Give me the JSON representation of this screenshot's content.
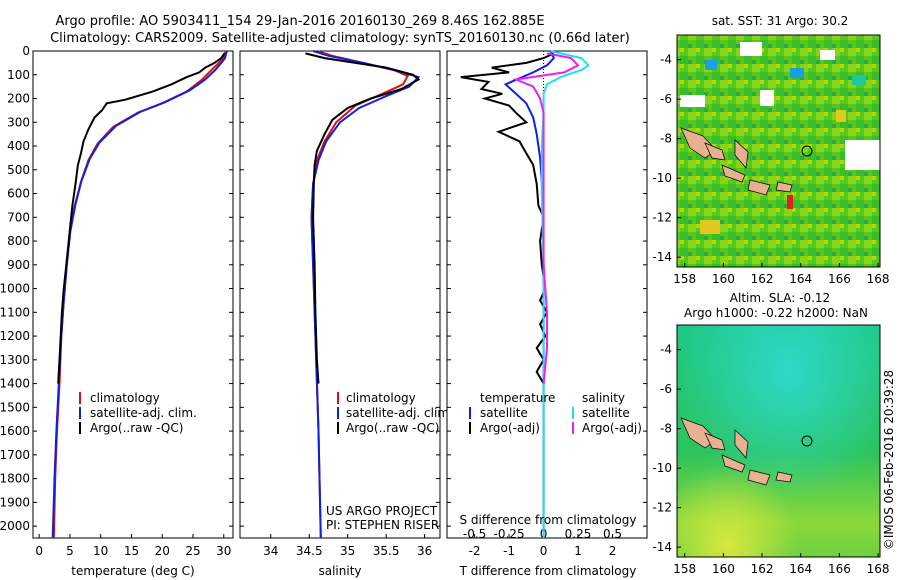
{
  "title": {
    "line1": "Argo profile: AO 5903411_154 29-Jan-2016 20160130_269 8.46S 162.885E",
    "line2": "Climatology: CARS2009. Satellite-adjusted climatology: synTS_20160130.nc (0.66d later)"
  },
  "depth_ticks": [
    0,
    100,
    200,
    300,
    400,
    500,
    600,
    700,
    800,
    900,
    1000,
    1100,
    1200,
    1300,
    1400,
    1500,
    1600,
    1700,
    1800,
    1900,
    2000
  ],
  "colors": {
    "climatology": "#e01010",
    "satellite": "#1020e0",
    "argo": "#000000",
    "sal_satellite": "#20e0f0",
    "sal_argo": "#f020f0"
  },
  "panels": {
    "temperature": {
      "xlabel": "temperature (deg C)",
      "xticks": [
        "0",
        "5",
        "10",
        "15",
        "20",
        "25",
        "30"
      ],
      "legend": [
        "climatology",
        "satellite-adj. clim.",
        "Argo(..raw -QC)"
      ]
    },
    "salinity": {
      "xlabel": "salinity",
      "xticks": [
        "34",
        "34.5",
        "35",
        "35.5",
        "36"
      ],
      "legend": [
        "climatology",
        "satellite-adj. clim.",
        "Argo(..raw -QC)"
      ],
      "credit1": "US ARGO PROJECT",
      "credit2": "PI: STEPHEN RISER"
    },
    "difference": {
      "xlabel_bottom": "T difference from climatology",
      "xlabel_top": "S difference from climatology",
      "xticks_T": [
        "-2",
        "-1",
        "0",
        "1",
        "2"
      ],
      "xticks_S": [
        "-0.5",
        "-0.25",
        "0",
        "0.25",
        "0.5"
      ],
      "legend_t_head": "temperature",
      "legend_s_head": "salinity",
      "legend_t": [
        "satellite",
        "Argo(-adj)"
      ],
      "legend_s": [
        "satellite",
        "Argo(-adj)"
      ]
    }
  },
  "maps": {
    "sst": {
      "title": "sat. SST: 31 Argo: 30.2",
      "yticks": [
        "-4",
        "-6",
        "-8",
        "-10",
        "-12",
        "-14"
      ],
      "xticks": [
        "158",
        "160",
        "162",
        "164",
        "166",
        "168"
      ]
    },
    "sla": {
      "title1": "Altim. SLA: -0.12",
      "title2": "Argo h1000: -0.22 h2000: NaN",
      "yticks": [
        "-4",
        "-6",
        "-8",
        "-10",
        "-12",
        "-14"
      ],
      "xticks": [
        "158",
        "160",
        "162",
        "164",
        "166",
        "168"
      ]
    }
  },
  "side_label": "©IMOS 06-Feb-2016 20:39:28",
  "chart_data": [
    {
      "type": "line",
      "xlabel": "temperature (deg C)",
      "ylabel": "",
      "xlim": [
        -1,
        31.5
      ],
      "ylim": [
        2050,
        0
      ],
      "series": [
        {
          "name": "climatology",
          "points": [
            [
              30.3,
              0
            ],
            [
              30.0,
              30
            ],
            [
              29.2,
              50
            ],
            [
              28.0,
              80
            ],
            [
              26.5,
              120
            ],
            [
              24.0,
              170
            ],
            [
              20.0,
              220
            ],
            [
              16.0,
              260
            ],
            [
              12.0,
              320
            ],
            [
              9.5,
              390
            ],
            [
              8.0,
              460
            ],
            [
              6.8,
              550
            ],
            [
              5.8,
              650
            ],
            [
              5.0,
              760
            ],
            [
              4.5,
              900
            ],
            [
              4.0,
              1050
            ],
            [
              3.6,
              1200
            ],
            [
              3.3,
              1400
            ],
            [
              2.9,
              1600
            ],
            [
              2.6,
              1800
            ],
            [
              2.4,
              2050
            ]
          ]
        },
        {
          "name": "satellite-adj. clim.",
          "points": [
            [
              30.5,
              0
            ],
            [
              30.2,
              30
            ],
            [
              29.6,
              50
            ],
            [
              28.6,
              80
            ],
            [
              27.0,
              120
            ],
            [
              24.5,
              165
            ],
            [
              20.5,
              215
            ],
            [
              16.5,
              255
            ],
            [
              12.5,
              315
            ],
            [
              9.8,
              385
            ],
            [
              8.2,
              455
            ],
            [
              6.9,
              545
            ],
            [
              5.9,
              645
            ],
            [
              5.1,
              755
            ],
            [
              4.5,
              900
            ],
            [
              4.0,
              1050
            ],
            [
              3.6,
              1200
            ],
            [
              3.2,
              1400
            ],
            [
              2.8,
              1600
            ],
            [
              2.5,
              1800
            ],
            [
              2.2,
              2050
            ]
          ]
        },
        {
          "name": "Argo(..raw -QC)",
          "points": [
            [
              30.1,
              10
            ],
            [
              29.6,
              30
            ],
            [
              28.5,
              50
            ],
            [
              27.0,
              70
            ],
            [
              26.0,
              90
            ],
            [
              24.0,
              110
            ],
            [
              21.5,
              140
            ],
            [
              18.5,
              170
            ],
            [
              14.0,
              205
            ],
            [
              11.0,
              220
            ],
            [
              10.2,
              250
            ],
            [
              9.0,
              280
            ],
            [
              8.0,
              330
            ],
            [
              7.2,
              380
            ],
            [
              6.8,
              430
            ],
            [
              6.3,
              480
            ],
            [
              5.9,
              560
            ],
            [
              5.4,
              650
            ],
            [
              5.0,
              750
            ],
            [
              4.5,
              880
            ],
            [
              4.0,
              1000
            ],
            [
              3.7,
              1100
            ],
            [
              3.5,
              1200
            ],
            [
              3.3,
              1300
            ],
            [
              3.1,
              1400
            ]
          ]
        }
      ]
    },
    {
      "type": "line",
      "xlabel": "salinity",
      "ylabel": "",
      "xlim": [
        33.6,
        36.2
      ],
      "ylim": [
        2050,
        0
      ],
      "series": [
        {
          "name": "climatology",
          "points": [
            [
              34.6,
              0
            ],
            [
              34.8,
              20
            ],
            [
              35.2,
              50
            ],
            [
              35.6,
              80
            ],
            [
              35.78,
              105
            ],
            [
              35.72,
              140
            ],
            [
              35.45,
              180
            ],
            [
              35.1,
              230
            ],
            [
              34.85,
              300
            ],
            [
              34.7,
              380
            ],
            [
              34.6,
              460
            ],
            [
              34.55,
              560
            ],
            [
              34.53,
              700
            ],
            [
              34.55,
              900
            ],
            [
              34.58,
              1200
            ],
            [
              34.62,
              1600
            ],
            [
              34.65,
              2050
            ]
          ]
        },
        {
          "name": "satellite-adj. clim.",
          "points": [
            [
              34.55,
              0
            ],
            [
              34.75,
              20
            ],
            [
              35.2,
              50
            ],
            [
              35.6,
              80
            ],
            [
              35.92,
              110
            ],
            [
              35.8,
              150
            ],
            [
              35.5,
              190
            ],
            [
              35.15,
              240
            ],
            [
              34.9,
              300
            ],
            [
              34.72,
              380
            ],
            [
              34.62,
              460
            ],
            [
              34.55,
              560
            ],
            [
              34.53,
              700
            ],
            [
              34.55,
              900
            ],
            [
              34.58,
              1200
            ],
            [
              34.62,
              1600
            ],
            [
              34.65,
              2050
            ]
          ]
        },
        {
          "name": "Argo(..raw -QC)",
          "points": [
            [
              34.45,
              10
            ],
            [
              34.7,
              30
            ],
            [
              35.1,
              50
            ],
            [
              35.5,
              70
            ],
            [
              35.85,
              100
            ],
            [
              35.92,
              120
            ],
            [
              35.7,
              160
            ],
            [
              35.3,
              200
            ],
            [
              35.0,
              240
            ],
            [
              34.8,
              290
            ],
            [
              34.7,
              350
            ],
            [
              34.6,
              420
            ],
            [
              34.57,
              480
            ],
            [
              34.56,
              560
            ],
            [
              34.55,
              700
            ],
            [
              34.57,
              900
            ],
            [
              34.58,
              1100
            ],
            [
              34.6,
              1300
            ],
            [
              34.62,
              1400
            ]
          ]
        }
      ]
    },
    {
      "type": "line",
      "xlabel": "T difference from climatology",
      "ylabel": "",
      "xlim": [
        -2.8,
        3.0
      ],
      "ylim": [
        2050,
        0
      ],
      "series": [
        {
          "name": "temperature satellite",
          "points": [
            [
              0.2,
              0
            ],
            [
              0.3,
              30
            ],
            [
              0.1,
              60
            ],
            [
              -0.3,
              90
            ],
            [
              -1.1,
              140
            ],
            [
              -0.8,
              180
            ],
            [
              -0.5,
              220
            ],
            [
              -0.3,
              280
            ],
            [
              -0.2,
              350
            ],
            [
              -0.1,
              450
            ],
            [
              -0.05,
              550
            ],
            [
              -0.02,
              700
            ],
            [
              0,
              900
            ],
            [
              0,
              1200
            ],
            [
              0,
              1600
            ],
            [
              0,
              2050
            ]
          ]
        },
        {
          "name": "temperature Argo(-adj)",
          "points": [
            [
              0.3,
              10
            ],
            [
              0,
              30
            ],
            [
              -0.5,
              50
            ],
            [
              -1.5,
              70
            ],
            [
              -1.0,
              90
            ],
            [
              -2.4,
              110
            ],
            [
              -1.6,
              130
            ],
            [
              -1.8,
              160
            ],
            [
              -1.2,
              180
            ],
            [
              -1.7,
              200
            ],
            [
              -1.0,
              230
            ],
            [
              -0.8,
              260
            ],
            [
              -0.5,
              300
            ],
            [
              -1.3,
              340
            ],
            [
              -0.7,
              380
            ],
            [
              -0.5,
              430
            ],
            [
              -0.3,
              480
            ],
            [
              -0.2,
              560
            ],
            [
              -0.15,
              650
            ],
            [
              0,
              700
            ],
            [
              -0.1,
              800
            ],
            [
              -0.05,
              900
            ],
            [
              0.05,
              1000
            ],
            [
              -0.1,
              1050
            ],
            [
              0.1,
              1100
            ],
            [
              -0.1,
              1150
            ],
            [
              0.05,
              1200
            ],
            [
              -0.2,
              1250
            ],
            [
              0,
              1300
            ],
            [
              -0.2,
              1350
            ],
            [
              0,
              1400
            ]
          ]
        },
        {
          "name": "salinity satellite",
          "points": [
            [
              0.2,
              0
            ],
            [
              1.1,
              30
            ],
            [
              1.3,
              60
            ],
            [
              1.1,
              80
            ],
            [
              0.5,
              110
            ],
            [
              0.1,
              140
            ],
            [
              0,
              180
            ],
            [
              0,
              250
            ],
            [
              -0.05,
              400
            ],
            [
              -0.05,
              600
            ],
            [
              0,
              900
            ],
            [
              0,
              1200
            ],
            [
              0,
              1600
            ],
            [
              0,
              2050
            ]
          ]
        },
        {
          "name": "salinity Argo(-adj)",
          "points": [
            [
              0.1,
              10
            ],
            [
              0.8,
              30
            ],
            [
              1.0,
              60
            ],
            [
              0.6,
              90
            ],
            [
              -0.8,
              120
            ],
            [
              -0.3,
              150
            ],
            [
              -0.1,
              200
            ],
            [
              0,
              260
            ],
            [
              0,
              400
            ],
            [
              0,
              600
            ],
            [
              0,
              900
            ],
            [
              0.1,
              1100
            ],
            [
              0.1,
              1250
            ],
            [
              0,
              1400
            ]
          ]
        }
      ]
    }
  ]
}
